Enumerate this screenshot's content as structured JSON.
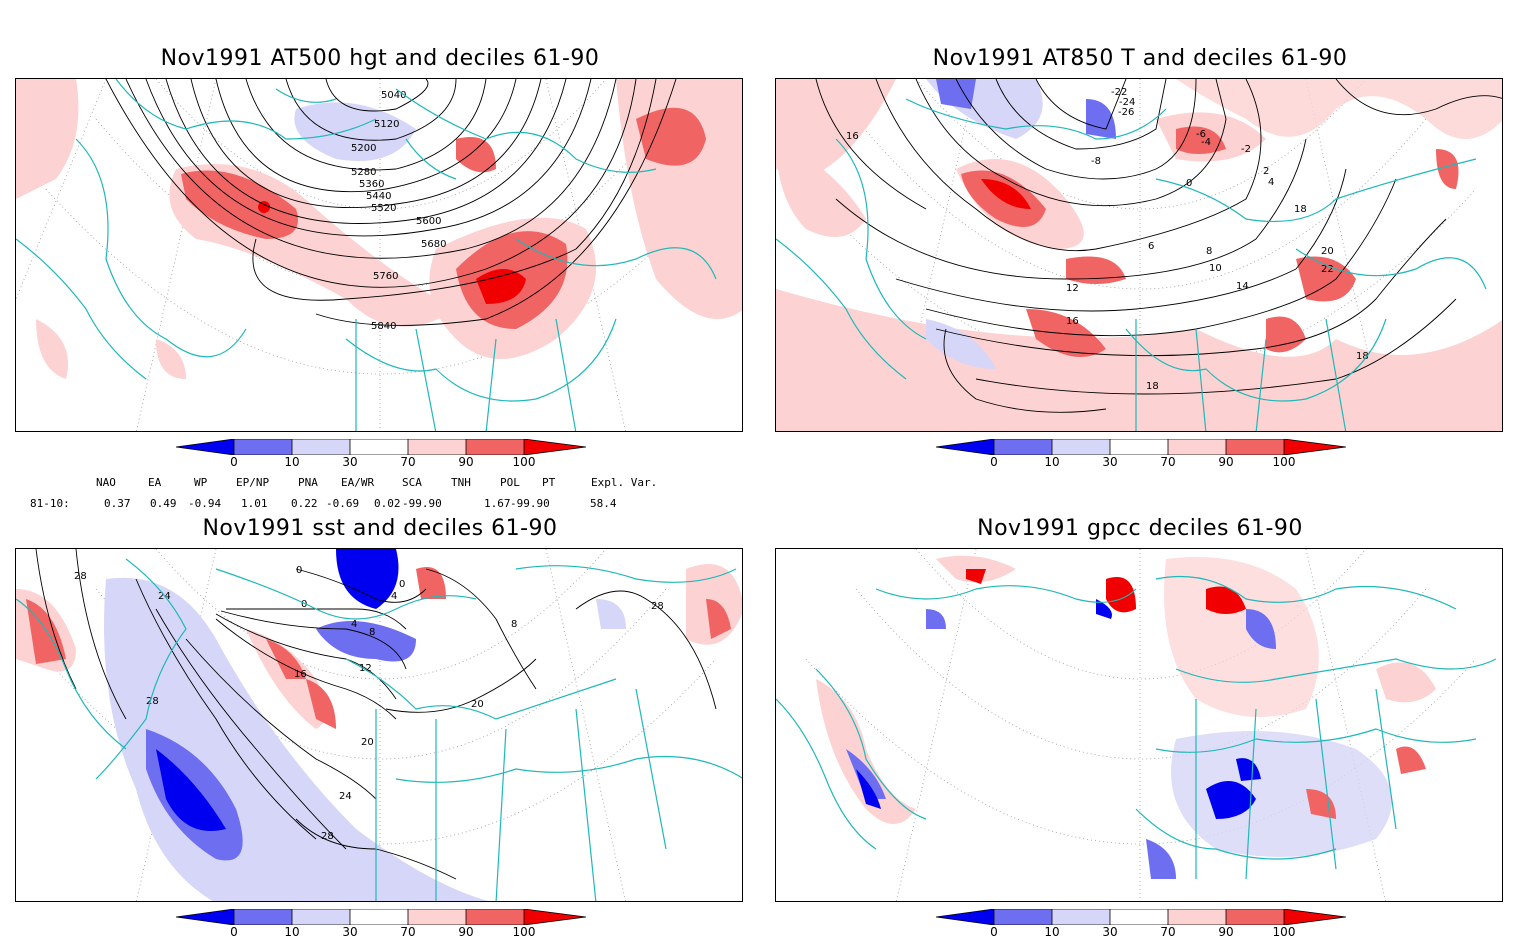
{
  "panels": [
    {
      "id": "p1",
      "title": "Nov1991 AT500 hgt and deciles 61-90",
      "contour_labels": [
        "5040",
        "5120",
        "5200",
        "5280",
        "5360",
        "5440",
        "5520",
        "5600",
        "5680",
        "5760",
        "5840"
      ]
    },
    {
      "id": "p2",
      "title": "Nov1991 AT850 T and deciles 61-90",
      "contour_labels": [
        "-22",
        "-24",
        "-26",
        "-6",
        "-4",
        "-2",
        "0",
        "2",
        "4",
        "6",
        "8",
        "10",
        "12",
        "14",
        "16",
        "18",
        "20",
        "22",
        "-8",
        "16",
        "18",
        "18"
      ]
    },
    {
      "id": "p3",
      "title": "Nov1991 sst and deciles 61-90",
      "contour_labels": [
        "28",
        "24",
        "28",
        "0",
        "0",
        "0",
        "4",
        "4",
        "8",
        "12",
        "16",
        "20",
        "20",
        "24",
        "28",
        "28",
        "8"
      ]
    },
    {
      "id": "p4",
      "title": "Nov1991 gpcc deciles 61-90",
      "contour_labels": []
    }
  ],
  "colorbar": {
    "ticks": [
      "0",
      "10",
      "30",
      "70",
      "90",
      "100"
    ],
    "colors": [
      "#0000f0",
      "#6e6ef0",
      "#d6d6f8",
      "#ffffff",
      "#fcd2d2",
      "#f06464",
      "#f00000"
    ]
  },
  "indices": {
    "headers": [
      "NAO",
      "EA",
      "WP",
      "EP/NP",
      "PNA",
      "EA/WR",
      "SCA",
      "TNH",
      "POL",
      "PT",
      "Expl. Var."
    ],
    "row_label": "81-10:",
    "values": [
      "0.37",
      "0.49",
      "-0.94",
      "1.01",
      "0.22",
      "-0.69",
      "0.02",
      "-99.90",
      "1.67",
      "-99.90",
      "58.4"
    ]
  }
}
